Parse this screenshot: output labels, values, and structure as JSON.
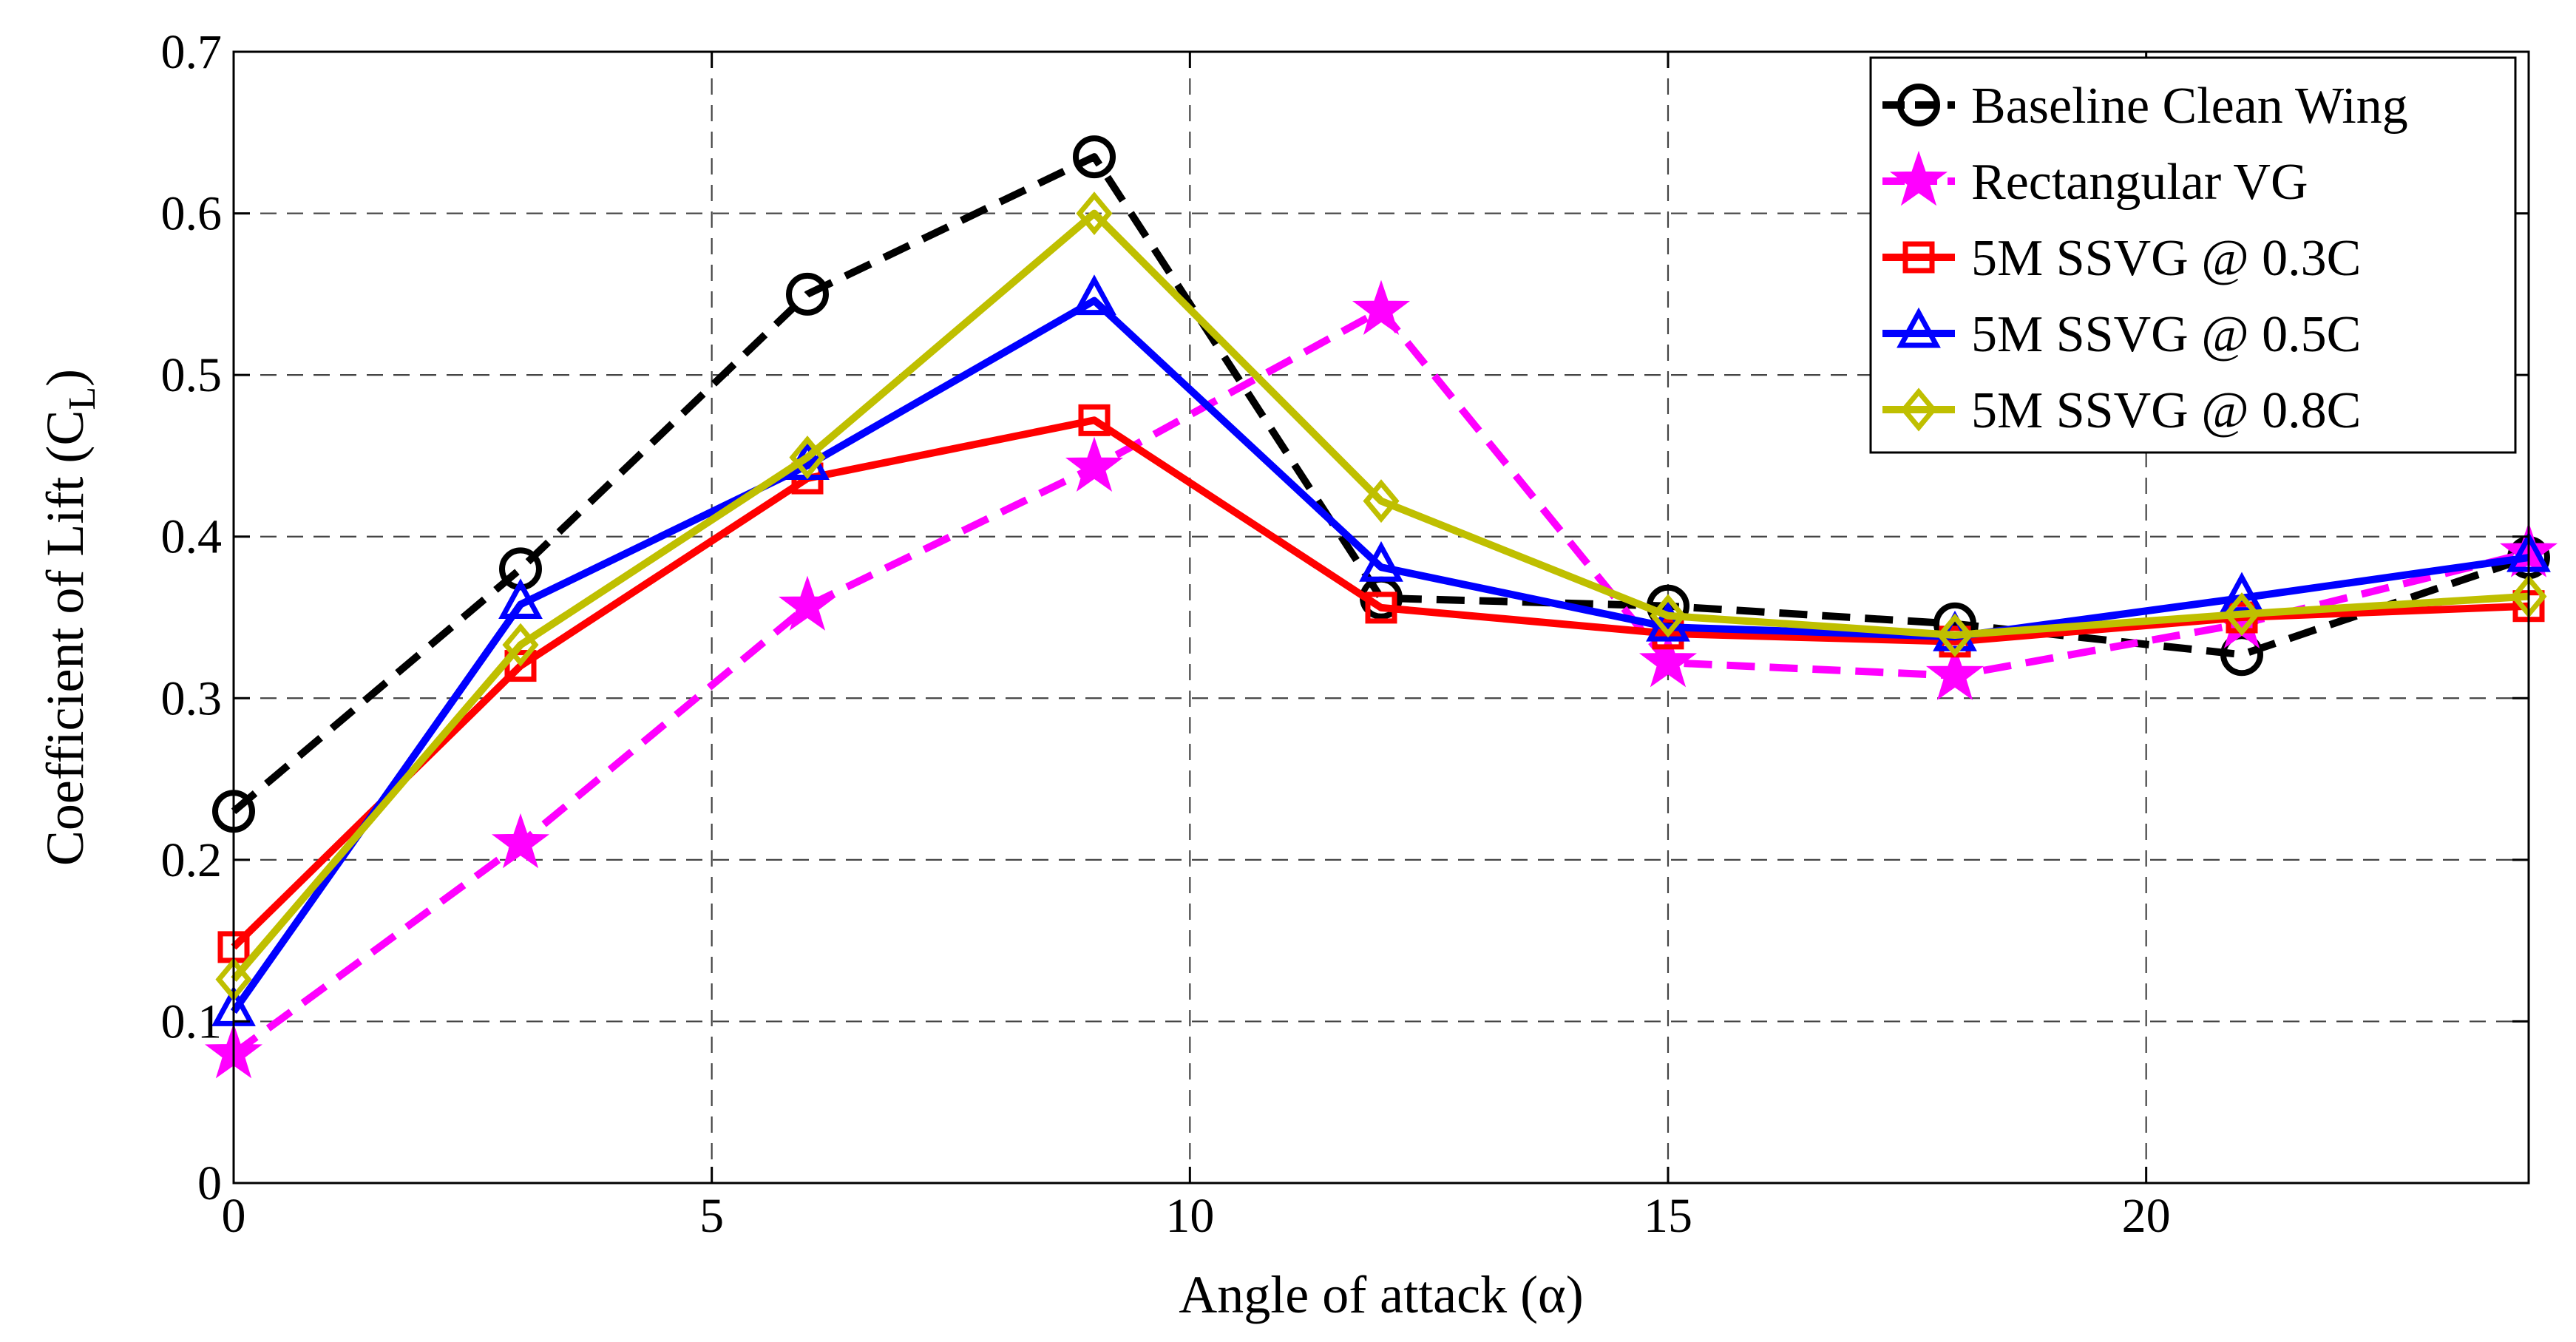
{
  "chart_data": {
    "type": "line",
    "title": "",
    "xlabel": "Angle of attack (α)",
    "ylabel_main": "Coefficient of Lift (C",
    "ylabel_sub": "L",
    "ylabel_close": ")",
    "xlim": [
      0,
      24
    ],
    "ylim": [
      0,
      0.7
    ],
    "xticks": [
      0,
      5,
      10,
      15,
      20
    ],
    "xtick_labels": [
      "0",
      "5",
      "10",
      "15",
      "20"
    ],
    "yticks": [
      0,
      0.1,
      0.2,
      0.3,
      0.4,
      0.5,
      0.6,
      0.7
    ],
    "ytick_labels": [
      "0",
      "0.1",
      "0.2",
      "0.3",
      "0.4",
      "0.5",
      "0.6",
      "0.7"
    ],
    "grid": true,
    "legend_position": "top-right",
    "x": [
      0,
      3,
      6,
      9,
      12,
      15,
      18,
      21,
      24
    ],
    "series": [
      {
        "name": "Baseline Clean Wing",
        "color": "#000000",
        "dashed": true,
        "marker": "circle",
        "values": [
          0.23,
          0.38,
          0.55,
          0.635,
          0.362,
          0.357,
          0.346,
          0.327,
          0.387
        ]
      },
      {
        "name": "Rectangular VG",
        "color": "#ff00ff",
        "dashed": true,
        "marker": "star",
        "values": [
          0.08,
          0.21,
          0.357,
          0.443,
          0.54,
          0.322,
          0.314,
          0.346,
          0.39
        ]
      },
      {
        "name": "5M SSVG @ 0.3C",
        "color": "#ff0000",
        "dashed": false,
        "marker": "square",
        "values": [
          0.146,
          0.32,
          0.436,
          0.472,
          0.356,
          0.34,
          0.335,
          0.35,
          0.357
        ]
      },
      {
        "name": "5M SSVG @ 0.5C",
        "color": "#0000ff",
        "dashed": false,
        "marker": "triangle",
        "values": [
          0.106,
          0.358,
          0.444,
          0.546,
          0.381,
          0.344,
          0.338,
          0.362,
          0.387
        ]
      },
      {
        "name": "5M SSVG @ 0.8C",
        "color": "#bfbf00",
        "dashed": false,
        "marker": "diamond",
        "values": [
          0.126,
          0.333,
          0.449,
          0.6,
          0.422,
          0.351,
          0.339,
          0.352,
          0.363
        ]
      }
    ]
  }
}
